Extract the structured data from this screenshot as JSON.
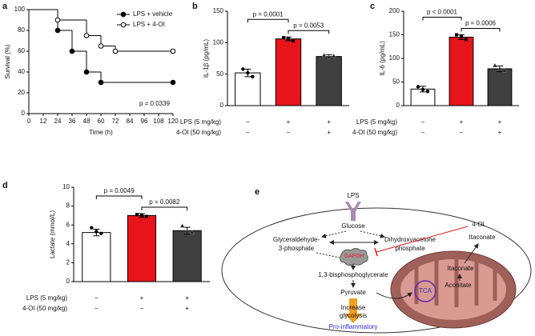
{
  "chart_data": [
    {
      "type": "line",
      "panel": "a",
      "xlabel": "Time (h)",
      "ylabel": "Survival (%)",
      "xlim": [
        0,
        120
      ],
      "xticks": [
        0,
        12,
        24,
        36,
        48,
        60,
        72,
        84,
        96,
        108,
        120
      ],
      "ylim": [
        0,
        100
      ],
      "yticks": [
        0,
        20,
        40,
        60,
        80,
        100
      ],
      "annotation": "p = 0.0339",
      "legend": "upper right",
      "series": [
        {
          "name": "LPS + vehicle",
          "color": "#000000",
          "marker": "filled",
          "x": [
            0,
            24,
            36,
            48,
            60,
            120
          ],
          "values": [
            100,
            80,
            60,
            40,
            30,
            30
          ]
        },
        {
          "name": "LPS + 4-OI",
          "color": "#000000",
          "marker": "open",
          "x": [
            0,
            24,
            48,
            60,
            72,
            120
          ],
          "values": [
            100,
            90,
            75,
            65,
            60,
            60
          ]
        }
      ]
    },
    {
      "type": "bar",
      "panel": "b",
      "ylabel": "IL-1β (pg/mL)",
      "ylim": [
        0,
        150
      ],
      "yticks": [
        0,
        50,
        100,
        150
      ],
      "values": [
        52,
        106,
        78
      ],
      "errors": [
        6,
        3,
        3
      ],
      "points": [
        [
          58,
          52,
          46
        ],
        [
          108,
          106,
          103
        ],
        [
          80,
          77,
          79
        ]
      ],
      "colors": [
        "#ffffff",
        "#e8141b",
        "#404040"
      ],
      "rows": [
        {
          "label": "LPS (5 mg/kg)",
          "marks": [
            "–",
            "+",
            "+"
          ]
        },
        {
          "label": "4-OI (50 mg/kg)",
          "marks": [
            "–",
            "–",
            "+"
          ]
        }
      ],
      "comparisons": [
        {
          "groups": [
            0,
            1
          ],
          "label": "p = 0.0001"
        },
        {
          "groups": [
            1,
            2
          ],
          "label": "p = 0.0053"
        }
      ]
    },
    {
      "type": "bar",
      "panel": "c",
      "ylabel": "IL-6 (pg/mL)",
      "ylim": [
        0,
        200
      ],
      "yticks": [
        0,
        50,
        100,
        150,
        200
      ],
      "values": [
        35,
        145,
        78
      ],
      "errors": [
        6,
        5,
        6
      ],
      "points": [
        [
          40,
          34,
          30
        ],
        [
          150,
          146,
          140
        ],
        [
          85,
          78,
          74
        ]
      ],
      "colors": [
        "#ffffff",
        "#e8141b",
        "#404040"
      ],
      "rows": [
        {
          "label": "LPS (5 mg/kg)",
          "marks": [
            "–",
            "+",
            "+"
          ]
        },
        {
          "label": "4-OI (50 mg/kg)",
          "marks": [
            "–",
            "–",
            "+"
          ]
        }
      ],
      "comparisons": [
        {
          "groups": [
            0,
            1
          ],
          "label": "p < 0.0001"
        },
        {
          "groups": [
            1,
            2
          ],
          "label": "p = 0.0006"
        }
      ]
    },
    {
      "type": "bar",
      "panel": "d",
      "ylabel": "Lactate (mmol/L)",
      "ylim": [
        0,
        10
      ],
      "yticks": [
        0,
        2,
        4,
        6,
        8,
        10
      ],
      "values": [
        5.2,
        7.0,
        5.4
      ],
      "errors": [
        0.35,
        0.2,
        0.35
      ],
      "points": [
        [
          5.7,
          5.3,
          5.1
        ],
        [
          7.1,
          7.0,
          6.9
        ],
        [
          5.9,
          5.3,
          5.2
        ]
      ],
      "colors": [
        "#ffffff",
        "#e8141b",
        "#404040"
      ],
      "rows": [
        {
          "label": "LPS (5 mg/kg)",
          "marks": [
            "–",
            "+",
            "+"
          ]
        },
        {
          "label": "4-OI (50 mg/kg)",
          "marks": [
            "–",
            "–",
            "+"
          ]
        }
      ],
      "comparisons": [
        {
          "groups": [
            0,
            1
          ],
          "label": "p = 0.0049"
        },
        {
          "groups": [
            1,
            2
          ],
          "label": "p = 0.0082"
        }
      ]
    }
  ],
  "diagram": {
    "panel": "e",
    "stimulus": "LPS",
    "glucose": "Glucose",
    "g3p": [
      "Glyceraldehyde-",
      "3-phosphate"
    ],
    "dhap": [
      "Dihydroxyacetone",
      "phosphate"
    ],
    "enzyme": "GAPDH",
    "inhibitor": "4-OI",
    "bpg": "1,3-bisphosphoglycerate",
    "pyruvate": "Pyruvate",
    "effect": [
      "Increase",
      "glycolysis"
    ],
    "outcome": "Pro-inflammatory",
    "itaconate_out": "Itaconate",
    "itaconate_in": "Itaconate",
    "aconitate": "Aconitate",
    "cycle": "TCA"
  }
}
